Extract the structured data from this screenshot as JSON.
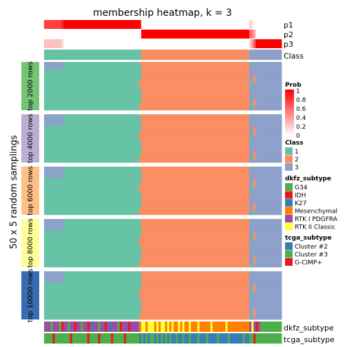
{
  "chart_data": {
    "type": "heatmap",
    "title": "membership heatmap, k = 3",
    "ylabel": "50 x 5 random samplings",
    "columns": 110,
    "class_colors": {
      "1": "#66C2A5",
      "2": "#FC8D62",
      "3": "#8DA0CB"
    },
    "top_annotation": {
      "rows": [
        "p1",
        "p2",
        "p3",
        "Class"
      ],
      "column_classes": [
        1,
        1,
        1,
        1,
        1,
        1,
        1,
        1,
        1,
        1,
        1,
        1,
        1,
        1,
        1,
        1,
        1,
        1,
        1,
        1,
        1,
        1,
        1,
        1,
        1,
        1,
        1,
        1,
        1,
        1,
        1,
        1,
        1,
        1,
        1,
        1,
        1,
        1,
        1,
        1,
        1,
        1,
        1,
        1,
        1,
        2,
        2,
        2,
        2,
        2,
        2,
        2,
        2,
        2,
        2,
        2,
        2,
        2,
        2,
        2,
        2,
        2,
        2,
        2,
        2,
        2,
        2,
        2,
        2,
        2,
        2,
        2,
        2,
        2,
        2,
        2,
        2,
        2,
        2,
        2,
        2,
        2,
        2,
        2,
        2,
        2,
        2,
        2,
        2,
        2,
        2,
        2,
        2,
        2,
        2,
        3,
        3,
        3,
        3,
        3,
        3,
        3,
        3,
        3,
        3,
        3,
        3,
        3,
        3,
        3,
        3
      ],
      "p_uncertain": [
        {
          "column": 0,
          "p1": 0.75,
          "p2": 0.0,
          "p3": 0.25
        },
        {
          "column": 1,
          "p1": 0.75,
          "p2": 0.0,
          "p3": 0.25
        },
        {
          "column": 2,
          "p1": 0.75,
          "p2": 0.0,
          "p3": 0.25
        },
        {
          "column": 3,
          "p1": 0.75,
          "p2": 0.0,
          "p3": 0.25
        },
        {
          "column": 4,
          "p1": 0.75,
          "p2": 0.0,
          "p3": 0.25
        },
        {
          "column": 5,
          "p1": 0.75,
          "p2": 0.0,
          "p3": 0.25
        },
        {
          "column": 6,
          "p1": 0.75,
          "p2": 0.0,
          "p3": 0.25
        },
        {
          "column": 7,
          "p1": 0.75,
          "p2": 0.0,
          "p3": 0.25
        },
        {
          "column": 8,
          "p1": 0.85,
          "p2": 0.0,
          "p3": 0.15
        },
        {
          "column": 44,
          "p1": 0.92,
          "p2": 0.08,
          "p3": 0.0
        },
        {
          "column": 95,
          "p1": 0.2,
          "p2": 0.6,
          "p3": 0.2
        },
        {
          "column": 96,
          "p1": 0.1,
          "p2": 0.5,
          "p3": 0.4
        },
        {
          "column": 97,
          "p1": 0.0,
          "p2": 0.35,
          "p3": 0.65
        }
      ]
    },
    "row_groups": [
      {
        "label": "top 2000 rows",
        "color": "#74C476"
      },
      {
        "label": "top 4000 rows",
        "color": "#BCAED3"
      },
      {
        "label": "top 6000 rows",
        "color": "#FDC086"
      },
      {
        "label": "top 8000 rows",
        "color": "#FFFF99"
      },
      {
        "label": "top 10000 rows",
        "color": "#386CB0"
      }
    ],
    "bottom_annotation": {
      "dkfz_subtype": [
        "RTK I PDGFRA",
        "RTK I PDGFRA",
        "RTK I PDGFRA",
        "G34",
        "RTK I PDGFRA",
        "RTK I PDGFRA",
        "RTK I PDGFRA",
        "G34",
        "IDH",
        "RTK I PDGFRA",
        "RTK I PDGFRA",
        "G34",
        "RTK I PDGFRA",
        "RTK I PDGFRA",
        "IDH",
        "RTK I PDGFRA",
        "RTK I PDGFRA",
        "G34",
        "RTK I PDGFRA",
        "RTK I PDGFRA",
        "IDH",
        "RTK I PDGFRA",
        "K27",
        "RTK I PDGFRA",
        "RTK I PDGFRA",
        "G34",
        "RTK I PDGFRA",
        "RTK I PDGFRA",
        "IDH",
        "RTK I PDGFRA",
        "K27",
        "RTK I PDGFRA",
        "RTK I PDGFRA",
        "RTK I PDGFRA",
        "G34",
        "IDH",
        "RTK I PDGFRA",
        "RTK I PDGFRA",
        "RTK I PDGFRA",
        "IDH",
        "RTK I PDGFRA",
        "RTK I PDGFRA",
        "RTK I PDGFRA",
        "RTK I PDGFRA",
        "Mesenchymal",
        "RTK II Classic",
        "RTK II Classic",
        "Mesenchymal",
        "RTK II Classic",
        "RTK II Classic",
        "RTK II Classic",
        "Mesenchymal",
        "RTK II Classic",
        "Mesenchymal",
        "RTK II Classic",
        "RTK II Classic",
        "Mesenchymal",
        "RTK II Classic",
        "Mesenchymal",
        "RTK II Classic",
        "Mesenchymal",
        "Mesenchymal",
        "RTK II Classic",
        "Mesenchymal",
        "RTK II Classic",
        "Mesenchymal",
        "Mesenchymal",
        "RTK II Classic",
        "Mesenchymal",
        "Mesenchymal",
        "Mesenchymal",
        "RTK II Classic",
        "Mesenchymal",
        "Mesenchymal",
        "Mesenchymal",
        "Mesenchymal",
        "Mesenchymal",
        "RTK II Classic",
        "Mesenchymal",
        "Mesenchymal",
        "Mesenchymal",
        "Mesenchymal",
        "Mesenchymal",
        "Mesenchymal",
        "RTK II Classic",
        "Mesenchymal",
        "Mesenchymal",
        "Mesenchymal",
        "Mesenchymal",
        "Mesenchymal",
        "Mesenchymal",
        "Mesenchymal",
        "Mesenchymal",
        "Mesenchymal",
        "Mesenchymal",
        "RTK I PDGFRA",
        "RTK II Classic",
        "RTK I PDGFRA",
        "IDH",
        "RTK I PDGFRA",
        "G34",
        "G34",
        "G34",
        "G34",
        "G34",
        "G34",
        "G34",
        "G34",
        "G34",
        "G34"
      ],
      "tcga_subtype": [
        "Cluster #3",
        "Cluster #3",
        "Cluster #3",
        "Cluster #3",
        "G-CIMP+",
        "Cluster #3",
        "Cluster #3",
        "Cluster #3",
        "Cluster #3",
        "Cluster #3",
        "Cluster #3",
        "Cluster #3",
        "G-CIMP+",
        "Cluster #3",
        "Cluster #3",
        "Cluster #3",
        "Cluster #3",
        "Cluster #3",
        "Cluster #3",
        "Cluster #3",
        "G-CIMP+",
        "Cluster #3",
        "Cluster #3",
        "Cluster #3",
        "Cluster #3",
        "G-CIMP+",
        "Cluster #3",
        "Cluster #3",
        "Cluster #3",
        "Cluster #3",
        "Cluster #3",
        "G-CIMP+",
        "Cluster #3",
        "Cluster #3",
        "Cluster #3",
        "Cluster #3",
        "Cluster #3",
        "G-CIMP+",
        "Cluster #3",
        "Cluster #3",
        "Cluster #3",
        "Cluster #3",
        "Cluster #3",
        "Cluster #3",
        "Cluster #2",
        "Cluster #3",
        "Cluster #2",
        "Cluster #3",
        "Cluster #2",
        "Cluster #3",
        "Cluster #3",
        "Cluster #2",
        "Cluster #3",
        "Cluster #2",
        "Cluster #3",
        "Cluster #2",
        "Cluster #3",
        "Cluster #2",
        "Cluster #3",
        "Cluster #2",
        "Cluster #2",
        "Cluster #3",
        "Cluster #2",
        "Cluster #2",
        "Cluster #3",
        "Cluster #2",
        "Cluster #2",
        "Cluster #3",
        "Cluster #2",
        "Cluster #2",
        "Cluster #2",
        "Cluster #3",
        "Cluster #2",
        "Cluster #2",
        "Cluster #2",
        "Cluster #3",
        "Cluster #2",
        "Cluster #2",
        "Cluster #2",
        "Cluster #2",
        "Cluster #3",
        "Cluster #2",
        "Cluster #2",
        "Cluster #2",
        "Cluster #2",
        "Cluster #3",
        "Cluster #2",
        "Cluster #2",
        "Cluster #2",
        "Cluster #2",
        "Cluster #2",
        "Cluster #2",
        "Cluster #3",
        "Cluster #2",
        "Cluster #2",
        "Cluster #3",
        "Cluster #3",
        "G-CIMP+",
        "Cluster #3",
        "Cluster #3",
        "Cluster #3",
        "Cluster #3",
        "Cluster #3",
        "Cluster #3",
        "Cluster #3",
        "Cluster #3",
        "Cluster #3",
        "Cluster #3",
        "Cluster #3",
        "Cluster #3"
      ],
      "labels": [
        "dkfz_subtype",
        "tcga_subtype"
      ]
    },
    "legends": {
      "prob": {
        "title": "Prob",
        "ticks": [
          "1",
          "0.8",
          "0.6",
          "0.4",
          "0.2",
          "0"
        ],
        "colors": [
          "#FFFFFF",
          "#FF0000"
        ]
      },
      "class": {
        "title": "Class",
        "entries": [
          {
            "label": "1",
            "color": "#66C2A5"
          },
          {
            "label": "2",
            "color": "#FC8D62"
          },
          {
            "label": "3",
            "color": "#8DA0CB"
          }
        ]
      },
      "dkfz_subtype": {
        "title": "dkfz_subtype",
        "entries": [
          {
            "label": "G34",
            "color": "#4DAF4A"
          },
          {
            "label": "IDH",
            "color": "#E41A1C"
          },
          {
            "label": "K27",
            "color": "#377EB8"
          },
          {
            "label": "Mesenchymal",
            "color": "#FF7F00"
          },
          {
            "label": "RTK I PDGFRA",
            "color": "#984EA3"
          },
          {
            "label": "RTK II Classic",
            "color": "#FFFF33"
          }
        ]
      },
      "tcga_subtype": {
        "title": "tcga_subtype",
        "entries": [
          {
            "label": "Cluster #2",
            "color": "#377EB8"
          },
          {
            "label": "Cluster #3",
            "color": "#4DAF4A"
          },
          {
            "label": "G-CIMP+",
            "color": "#E41A1C"
          }
        ]
      }
    }
  }
}
